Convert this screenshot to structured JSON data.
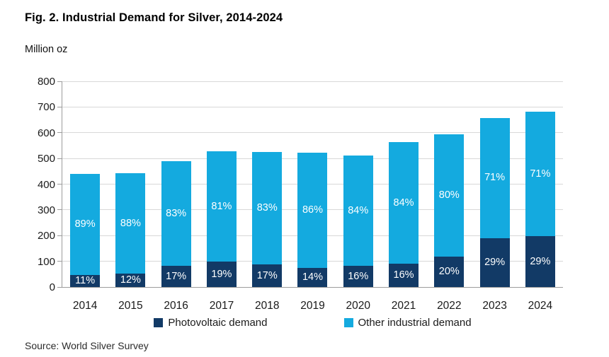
{
  "title": "Fig. 2. Industrial Demand for Silver, 2014-2024",
  "y_axis_label": "Million oz",
  "source": "Source: World Silver Survey",
  "colors": {
    "photovoltaic": "#123a66",
    "other_industrial": "#14aadf",
    "gridline": "#d8d8d8",
    "axis": "#9c9c9c"
  },
  "legend": [
    {
      "label": "Photovoltaic demand",
      "color": "#123a66"
    },
    {
      "label": "Other industrial demand",
      "color": "#14aadf"
    }
  ],
  "chart_data": {
    "type": "bar",
    "stacked": true,
    "title": "Fig. 2. Industrial Demand for Silver, 2014-2024",
    "ylabel": "Million oz",
    "xlabel": "",
    "ylim": [
      0,
      800
    ],
    "ytick_step": 100,
    "grid": true,
    "legend_position": "bottom",
    "y_ticks": [
      "0",
      "100",
      "200",
      "300",
      "400",
      "500",
      "600",
      "700",
      "800"
    ],
    "categories": [
      "2014",
      "2015",
      "2016",
      "2017",
      "2018",
      "2019",
      "2020",
      "2021",
      "2022",
      "2023",
      "2024"
    ],
    "series": [
      {
        "name": "Photovoltaic demand",
        "color": "#123a66",
        "values": [
          48,
          53,
          83,
          100,
          89,
          73,
          82,
          90,
          119,
          191,
          198
        ],
        "labels": [
          "11%",
          "12%",
          "17%",
          "19%",
          "17%",
          "14%",
          "16%",
          "16%",
          "20%",
          "29%",
          "29%"
        ]
      },
      {
        "name": "Other industrial demand",
        "color": "#14aadf",
        "values": [
          392,
          390,
          407,
          427,
          436,
          450,
          430,
          474,
          474,
          467,
          484
        ],
        "labels": [
          "89%",
          "88%",
          "83%",
          "81%",
          "83%",
          "86%",
          "84%",
          "84%",
          "80%",
          "71%",
          "71%"
        ]
      }
    ],
    "totals": [
      440,
      443,
      490,
      527,
      525,
      523,
      512,
      564,
      593,
      658,
      682
    ]
  }
}
